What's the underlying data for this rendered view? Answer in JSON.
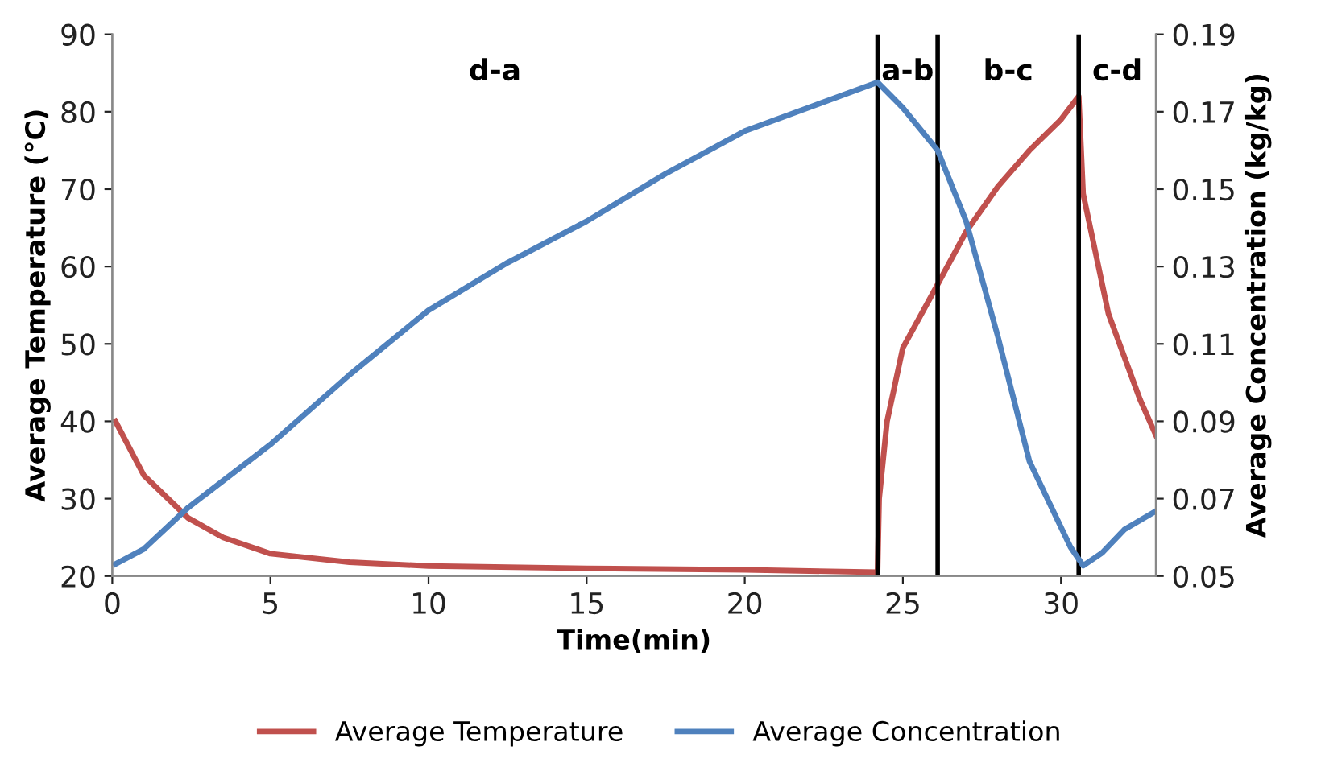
{
  "chart_data": {
    "type": "line",
    "xlabel": "Time(min)",
    "ylabel": "Average Temperature (°C)",
    "y2label": "Average Concentration (kg/kg)",
    "xlim": [
      0,
      33
    ],
    "xticks": [
      0,
      5,
      10,
      15,
      20,
      25,
      30
    ],
    "ylim": [
      20,
      90
    ],
    "yticks": [
      20,
      30,
      40,
      50,
      60,
      70,
      80,
      90
    ],
    "y2lim": [
      0.05,
      0.19
    ],
    "y2ticks": [
      0.05,
      0.07,
      0.09,
      0.11,
      0.13,
      0.15,
      0.17,
      0.19
    ],
    "grid": false,
    "legend": "bottom",
    "line_style": "solid",
    "series": [
      {
        "name": "Average Temperature",
        "color": "#c0504d",
        "x": [
          0.1,
          1,
          2.4,
          3.5,
          5,
          7.5,
          10,
          15,
          20,
          24.2,
          24.25,
          24.5,
          25,
          26.1,
          27,
          28,
          29,
          30,
          30.56,
          30.7,
          31.5,
          32.5,
          33
        ],
        "values": [
          40,
          33,
          27.5,
          25,
          22.9,
          21.8,
          21.3,
          21,
          20.8,
          20.5,
          30,
          40,
          49.5,
          57.7,
          64.5,
          70.3,
          75,
          79,
          82,
          69.4,
          53.9,
          42.8,
          38.2
        ]
      },
      {
        "name": "Average Concentration",
        "color": "#4f81bd",
        "axis": "y2",
        "x": [
          0.1,
          1,
          2.4,
          5,
          7.5,
          10,
          12.5,
          15,
          17.5,
          20,
          22,
          24.2,
          25,
          26.1,
          27,
          28,
          29,
          30.3,
          30.7,
          31.3,
          32,
          33
        ],
        "values": [
          0.0531,
          0.057,
          0.0677,
          0.084,
          0.102,
          0.1187,
          0.131,
          0.1417,
          0.154,
          0.165,
          0.171,
          0.1776,
          0.171,
          0.16,
          0.1417,
          0.112,
          0.0797,
          0.0575,
          0.0527,
          0.056,
          0.062,
          0.0668
        ]
      }
    ],
    "ref_lines": [
      {
        "axis": "x",
        "value": 24.2,
        "color": "#000000"
      },
      {
        "axis": "x",
        "value": 26.1,
        "color": "#000000"
      },
      {
        "axis": "x",
        "value": 30.56,
        "color": "#000000"
      }
    ],
    "annotations": [
      "d-a",
      "a-b",
      "b-c",
      "c-d"
    ]
  }
}
